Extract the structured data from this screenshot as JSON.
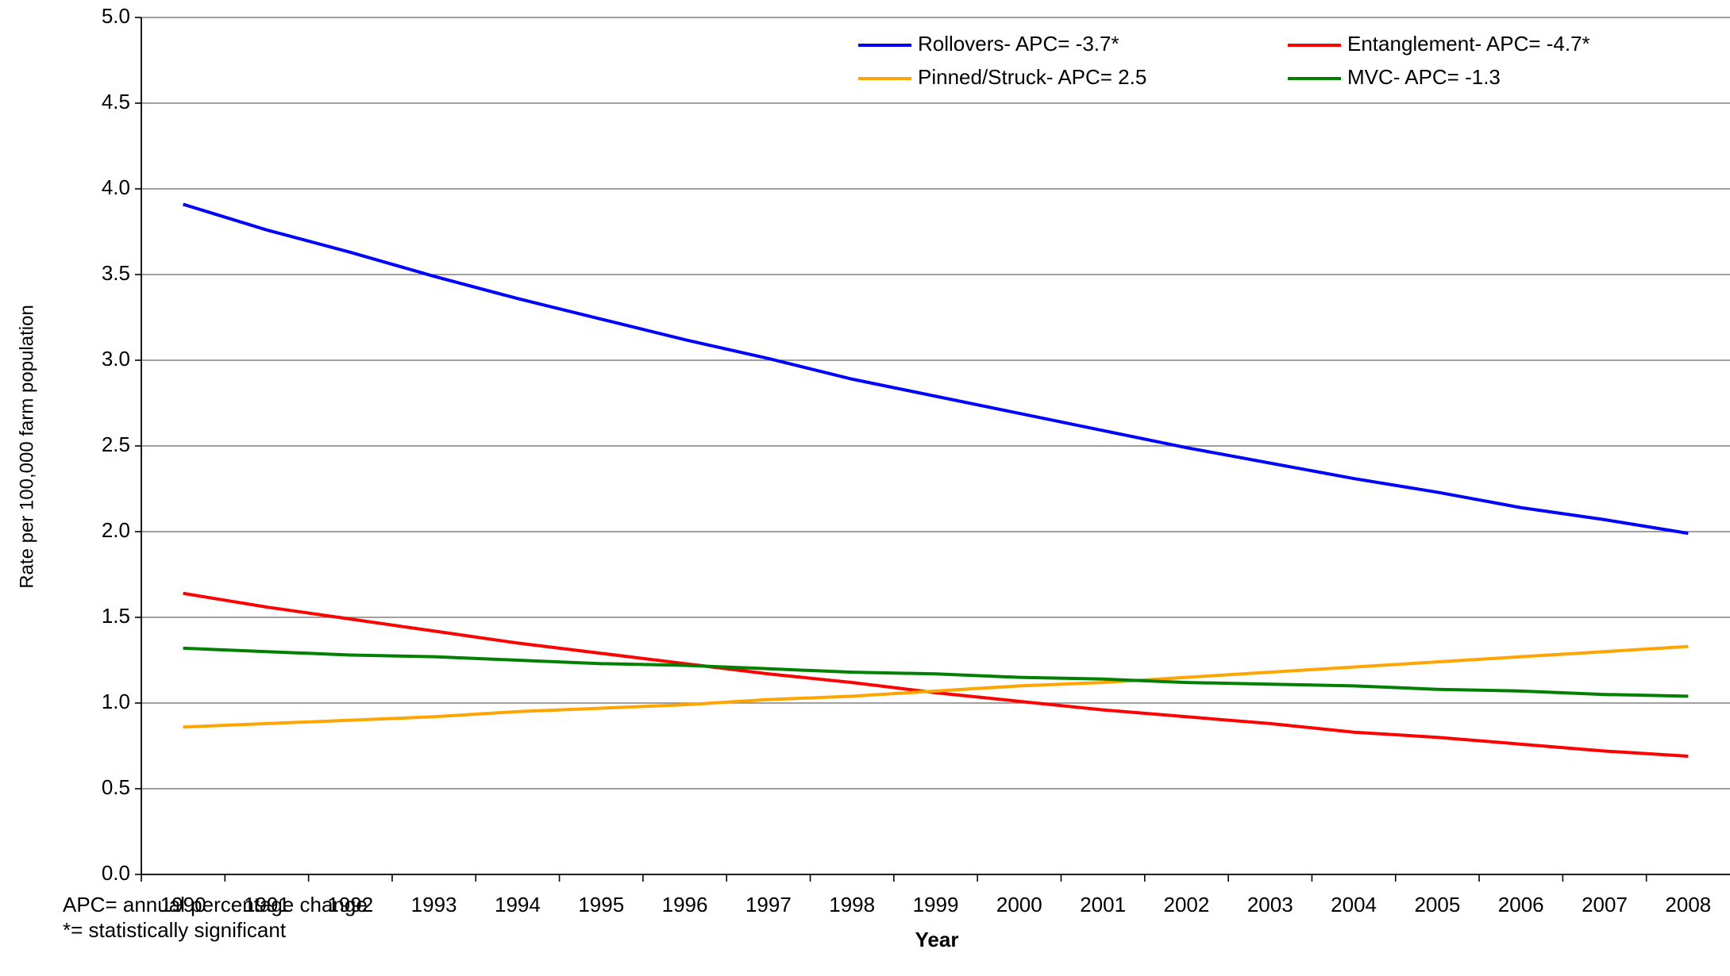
{
  "chart_data": {
    "type": "line",
    "y_label": "Rate per 100,000 farm population",
    "x_label": "Year",
    "notes": [
      "APC= annual percentage change",
      "*= statistically significant"
    ],
    "categories": [
      "1990",
      "1991",
      "1992",
      "1993",
      "1994",
      "1995",
      "1996",
      "1997",
      "1998",
      "1999",
      "2000",
      "2001",
      "2002",
      "2003",
      "2004",
      "2005",
      "2006",
      "2007",
      "2008"
    ],
    "series": [
      {
        "name": "Rollovers- APC= -3.7*",
        "color": "#0000ff",
        "values": [
          3.91,
          3.76,
          3.63,
          3.49,
          3.36,
          3.24,
          3.12,
          3.01,
          2.89,
          2.79,
          2.69,
          2.59,
          2.49,
          2.4,
          2.31,
          2.23,
          2.14,
          2.07,
          1.99
        ]
      },
      {
        "name": "Entanglement- APC= -4.7*",
        "color": "#ff0000",
        "values": [
          1.64,
          1.56,
          1.49,
          1.42,
          1.35,
          1.29,
          1.23,
          1.17,
          1.12,
          1.06,
          1.01,
          0.96,
          0.92,
          0.88,
          0.83,
          0.8,
          0.76,
          0.72,
          0.69
        ]
      },
      {
        "name": "Pinned/Struck- APC= 2.5",
        "color": "#ffa500",
        "values": [
          0.86,
          0.88,
          0.9,
          0.92,
          0.95,
          0.97,
          0.99,
          1.02,
          1.04,
          1.07,
          1.1,
          1.12,
          1.15,
          1.18,
          1.21,
          1.24,
          1.27,
          1.3,
          1.33
        ]
      },
      {
        "name": "MVC- APC= -1.3",
        "color": "#008000",
        "values": [
          1.32,
          1.3,
          1.28,
          1.27,
          1.25,
          1.23,
          1.22,
          1.2,
          1.18,
          1.17,
          1.15,
          1.14,
          1.12,
          1.11,
          1.1,
          1.08,
          1.07,
          1.05,
          1.04
        ]
      }
    ],
    "ylim": [
      0,
      5
    ],
    "yticks": [
      {
        "value": 0,
        "label": "0.0"
      },
      0.5,
      {
        "value": 1,
        "label": "1.0"
      },
      1.5,
      {
        "value": 2,
        "label": "2.0"
      },
      2.5,
      {
        "value": 3,
        "label": "3.0"
      },
      3.5,
      {
        "value": 4,
        "label": "4.0"
      },
      4.5,
      {
        "value": 5,
        "label": "5.0"
      }
    ],
    "grid": true,
    "legend": "top-right"
  }
}
